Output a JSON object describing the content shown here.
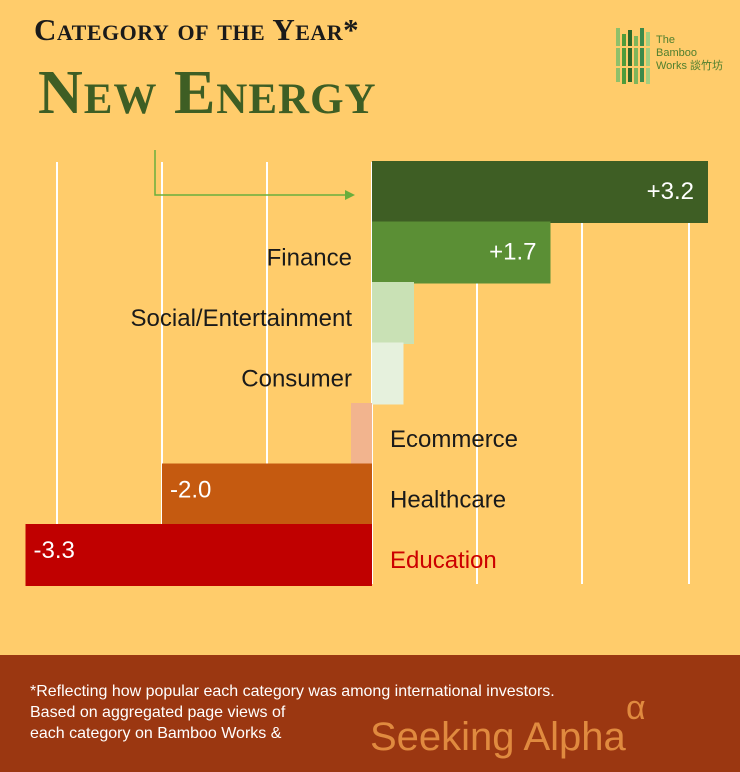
{
  "header": {
    "headline": "Category of the Year*",
    "winner": "New Energy"
  },
  "logo": {
    "line1": "The",
    "line2": "Bamboo",
    "line3": "Works",
    "chinese": "談竹坊"
  },
  "colors": {
    "background": "#FFCC6B",
    "footer": "#9B3711",
    "title_green": "#3E5E24",
    "arrow_green": "#6AAE3C",
    "education_red": "#CC0000"
  },
  "chart_data": {
    "type": "bar",
    "orientation": "horizontal",
    "categories": [
      "New Energy",
      "Finance",
      "Social/Entertainment",
      "Consumer",
      "Ecommerce",
      "Healthcare",
      "Education"
    ],
    "values": [
      3.2,
      1.7,
      0.4,
      0.3,
      -0.2,
      -2.0,
      -3.3
    ],
    "data_labels": [
      "+3.2",
      "+1.7",
      "",
      "",
      "",
      "-2.0",
      "-3.3"
    ],
    "bar_colors": [
      "#3E5E24",
      "#5B8F35",
      "#C9E1B5",
      "#E6F1DD",
      "#F2B48E",
      "#C55A10",
      "#C00000"
    ],
    "label_colors": [
      "#1a1a1a",
      "#1a1a1a",
      "#1a1a1a",
      "#1a1a1a",
      "#1a1a1a",
      "#1a1a1a",
      "#CC0000"
    ],
    "xlim": [
      -3.2,
      3.2
    ],
    "grid": true,
    "title": "",
    "xlabel": "",
    "ylabel": ""
  },
  "footer": {
    "footnote_line1": "*Reflecting how popular each category was among international investors.",
    "footnote_line2": "Based on aggregated page views of",
    "footnote_line3": "each category on Bamboo Works &",
    "source_brand": "Seeking Alpha",
    "source_symbol": "α"
  }
}
